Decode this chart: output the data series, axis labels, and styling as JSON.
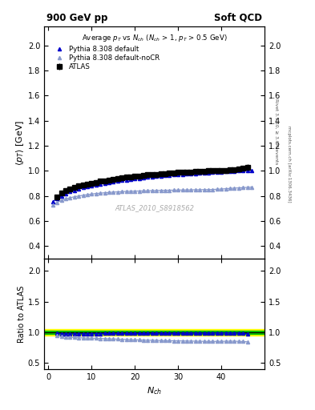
{
  "title_left": "900 GeV pp",
  "title_right": "Soft QCD",
  "main_title": "Average $p_T$ vs $N_{ch}$ ($N_{ch}$ > 1, $p_T$ > 0.5 GeV)",
  "xlabel": "$N_{ch}$",
  "ylabel_main": "$\\langle p_T \\rangle$ [GeV]",
  "ylabel_ratio": "Ratio to ATLAS",
  "right_label1": "Rivet 3.1.10, ≥ 3.6M events",
  "right_label2": "mcplots.cern.ch [arXiv:1306.3436]",
  "watermark": "ATLAS_2010_S8918562",
  "ylim_main": [
    0.3,
    2.15
  ],
  "ylim_ratio": [
    0.4,
    2.2
  ],
  "xlim": [
    -1,
    50
  ],
  "atlas_nch": [
    2,
    3,
    4,
    5,
    6,
    7,
    8,
    9,
    10,
    11,
    12,
    13,
    14,
    15,
    16,
    17,
    18,
    19,
    20,
    21,
    22,
    23,
    24,
    25,
    26,
    27,
    28,
    29,
    30,
    31,
    32,
    33,
    34,
    35,
    36,
    37,
    38,
    39,
    40,
    41,
    42,
    43,
    44,
    45,
    46
  ],
  "atlas_pt": [
    0.79,
    0.82,
    0.84,
    0.856,
    0.868,
    0.878,
    0.888,
    0.896,
    0.902,
    0.909,
    0.916,
    0.922,
    0.928,
    0.933,
    0.938,
    0.943,
    0.948,
    0.952,
    0.956,
    0.96,
    0.964,
    0.967,
    0.97,
    0.973,
    0.976,
    0.979,
    0.981,
    0.984,
    0.986,
    0.988,
    0.99,
    0.992,
    0.994,
    0.996,
    0.998,
    0.999,
    1.001,
    1.002,
    1.004,
    1.005,
    1.007,
    1.01,
    1.015,
    1.02,
    1.03
  ],
  "atlas_err": [
    0.01,
    0.01,
    0.01,
    0.01,
    0.01,
    0.01,
    0.01,
    0.01,
    0.01,
    0.01,
    0.01,
    0.01,
    0.01,
    0.01,
    0.01,
    0.01,
    0.01,
    0.01,
    0.01,
    0.01,
    0.01,
    0.01,
    0.01,
    0.01,
    0.01,
    0.01,
    0.01,
    0.01,
    0.01,
    0.01,
    0.01,
    0.01,
    0.01,
    0.01,
    0.01,
    0.01,
    0.01,
    0.01,
    0.01,
    0.01,
    0.01,
    0.01,
    0.01,
    0.015,
    0.02
  ],
  "py_default_nch": [
    1,
    2,
    3,
    4,
    5,
    6,
    7,
    8,
    9,
    10,
    11,
    12,
    13,
    14,
    15,
    16,
    17,
    18,
    19,
    20,
    21,
    22,
    23,
    24,
    25,
    26,
    27,
    28,
    29,
    30,
    31,
    32,
    33,
    34,
    35,
    36,
    37,
    38,
    39,
    40,
    41,
    42,
    43,
    44,
    45,
    46,
    47
  ],
  "py_default_pt": [
    0.755,
    0.778,
    0.8,
    0.818,
    0.833,
    0.845,
    0.856,
    0.865,
    0.874,
    0.882,
    0.889,
    0.896,
    0.902,
    0.908,
    0.914,
    0.919,
    0.924,
    0.928,
    0.933,
    0.937,
    0.941,
    0.945,
    0.948,
    0.952,
    0.955,
    0.958,
    0.961,
    0.964,
    0.967,
    0.97,
    0.972,
    0.975,
    0.977,
    0.979,
    0.981,
    0.983,
    0.985,
    0.987,
    0.989,
    0.991,
    0.993,
    0.995,
    0.997,
    0.999,
    1.001,
    1.003,
    1.005
  ],
  "py_nocr_nch": [
    1,
    2,
    3,
    4,
    5,
    6,
    7,
    8,
    9,
    10,
    11,
    12,
    13,
    14,
    15,
    16,
    17,
    18,
    19,
    20,
    21,
    22,
    23,
    24,
    25,
    26,
    27,
    28,
    29,
    30,
    31,
    32,
    33,
    34,
    35,
    36,
    37,
    38,
    39,
    40,
    41,
    42,
    43,
    44,
    45,
    46,
    47
  ],
  "py_nocr_pt": [
    0.725,
    0.748,
    0.764,
    0.776,
    0.785,
    0.793,
    0.799,
    0.805,
    0.81,
    0.815,
    0.819,
    0.822,
    0.825,
    0.828,
    0.83,
    0.832,
    0.834,
    0.836,
    0.837,
    0.838,
    0.839,
    0.84,
    0.841,
    0.842,
    0.843,
    0.844,
    0.845,
    0.845,
    0.846,
    0.847,
    0.847,
    0.848,
    0.848,
    0.849,
    0.849,
    0.85,
    0.85,
    0.851,
    0.853,
    0.855,
    0.857,
    0.86,
    0.862,
    0.864,
    0.866,
    0.868,
    0.87
  ],
  "atlas_color": "black",
  "py_default_color": "#0000cc",
  "py_nocr_color": "#8899cc",
  "band_yellow": "#ffff00",
  "band_green": "#00bb00",
  "ratio_yellow_lo": 0.95,
  "ratio_yellow_hi": 1.05,
  "ratio_green_lo": 0.975,
  "ratio_green_hi": 1.025,
  "legend_entries": [
    "ATLAS",
    "Pythia 8.308 default",
    "Pythia 8.308 default-noCR"
  ],
  "yticks_main": [
    0.4,
    0.6,
    0.8,
    1.0,
    1.2,
    1.4,
    1.6,
    1.8,
    2.0
  ],
  "yticks_ratio": [
    0.5,
    1.0,
    1.5,
    2.0
  ],
  "xticks": [
    0,
    10,
    20,
    30,
    40
  ]
}
